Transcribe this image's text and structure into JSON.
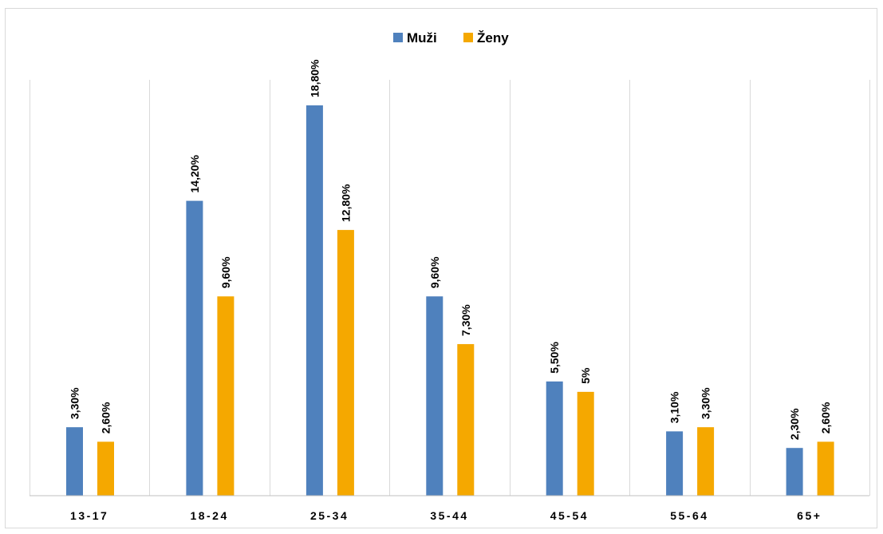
{
  "chart_data": {
    "type": "bar",
    "title": "",
    "xlabel": "",
    "ylabel": "",
    "categories": [
      "13-17",
      "18-24",
      "25-34",
      "35-44",
      "45-54",
      "55-64",
      "65+"
    ],
    "series": [
      {
        "name": "Muži",
        "color": "#4f81bd",
        "values": [
          3.3,
          14.2,
          18.8,
          9.6,
          5.5,
          3.1,
          2.3
        ],
        "labels": [
          "3,30%",
          "14,20%",
          "18,80%",
          "9,60%",
          "5,50%",
          "3,10%",
          "2,30%"
        ]
      },
      {
        "name": "Ženy",
        "color": "#f5a800",
        "values": [
          2.6,
          9.6,
          12.8,
          7.3,
          5.0,
          3.3,
          2.6
        ],
        "labels": [
          "2,60%",
          "9,60%",
          "12,80%",
          "7,30%",
          "5%",
          "3,30%",
          "2,60%"
        ]
      }
    ],
    "ylim": [
      0,
      18.8
    ],
    "grid": "vertical category separators",
    "legend_position": "top-center"
  }
}
